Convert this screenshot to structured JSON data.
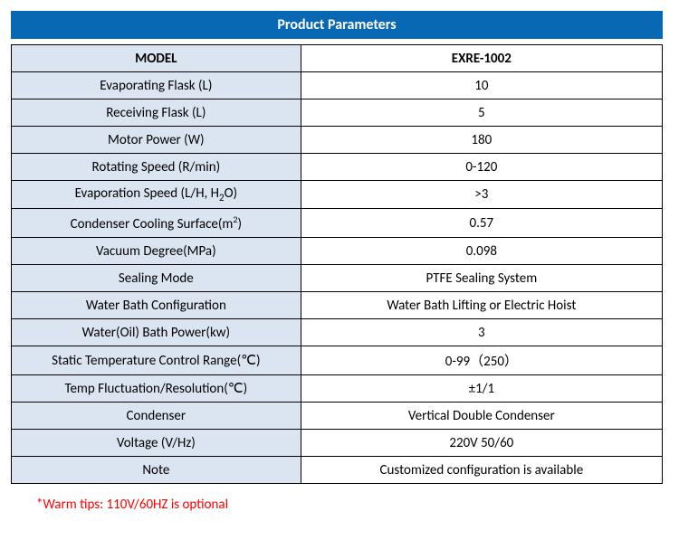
{
  "title": "Product  Parameters",
  "colors": {
    "title_bg": "#0968b3",
    "title_text": "#ffffff",
    "left_col_bg": "#dbe5f1",
    "right_col_bg": "#ffffff",
    "border": "#000000",
    "footnote": "#ff0000"
  },
  "table": {
    "header": {
      "left": "MODEL",
      "right": "EXRE-1002"
    },
    "rows": [
      {
        "label": "Evaporating Flask (L)",
        "value": "10"
      },
      {
        "label": "Receiving Flask (L)",
        "value": "5"
      },
      {
        "label": "Motor Power (W)",
        "value": "180"
      },
      {
        "label": "Rotating Speed (R/min)",
        "value": "0-120"
      },
      {
        "label_html": "Evaporation Speed (L/H, H<sub>2</sub>O)",
        "label": "Evaporation Speed (L/H, H2O)",
        "value": ">3"
      },
      {
        "label_html": "Condenser Cooling Surface(m<sup>2</sup>)",
        "label": "Condenser Cooling Surface(m2)",
        "value": "0.57"
      },
      {
        "label": "Vacuum Degree(MPa)",
        "value": "0.098"
      },
      {
        "label": "Sealing Mode",
        "value": "PTFE Sealing System"
      },
      {
        "label": "Water Bath Configuration",
        "value": "Water Bath Lifting or Electric Hoist"
      },
      {
        "label": "Water(Oil) Bath Power(kw)",
        "value": "3"
      },
      {
        "label": "Static Temperature Control Range(℃)",
        "value": "0-99（250）"
      },
      {
        "label": "Temp Fluctuation/Resolution(℃)",
        "value": "±1/1"
      },
      {
        "label": "Condenser",
        "value": "Vertical Double Condenser"
      },
      {
        "label": "Voltage (V/Hz)",
        "value": "220V 50/60"
      },
      {
        "label": "Note",
        "value": "Customized configuration is available"
      }
    ]
  },
  "footnote": "*Warm tips: 110V/60HZ is optional"
}
